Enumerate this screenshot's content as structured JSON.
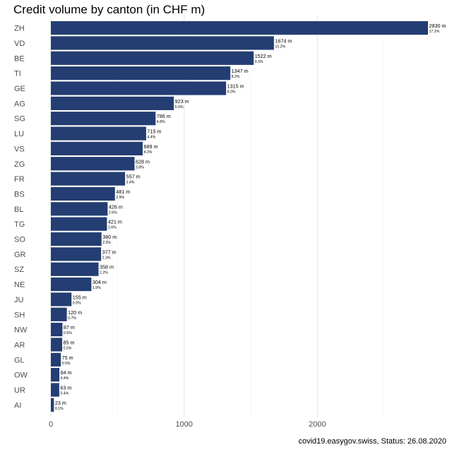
{
  "chart_data": {
    "type": "bar",
    "orientation": "horizontal",
    "title": "Credit volume by canton (in CHF m)",
    "xlabel": "",
    "ylabel": "",
    "categories": [
      "ZH",
      "VD",
      "BE",
      "TI",
      "GE",
      "AG",
      "SG",
      "LU",
      "VS",
      "ZG",
      "FR",
      "BS",
      "BL",
      "TG",
      "SO",
      "GR",
      "SZ",
      "NE",
      "JU",
      "SH",
      "NW",
      "AR",
      "GL",
      "OW",
      "UR",
      "AI"
    ],
    "values": [
      2830,
      1674,
      1522,
      1347,
      1315,
      923,
      786,
      715,
      689,
      628,
      557,
      481,
      426,
      421,
      380,
      377,
      358,
      304,
      155,
      120,
      87,
      85,
      75,
      64,
      63,
      23
    ],
    "value_labels": [
      "2830 m",
      "1674 m",
      "1522 m",
      "1347 m",
      "1315 m",
      "923 m",
      "786 m",
      "715 m",
      "689 m",
      "628 m",
      "557 m",
      "481 m",
      "426 m",
      "421 m",
      "380 m",
      "377 m",
      "358 m",
      "304 m",
      "155 m",
      "120 m",
      "87 m",
      "85 m",
      "75 m",
      "64 m",
      "63 m",
      "23 m"
    ],
    "share_labels": [
      "17.2%",
      "10.2%",
      "9.3%",
      "8.2%",
      "8.0%",
      "5.6%",
      "4.8%",
      "4.4%",
      "4.2%",
      "3.8%",
      "3.4%",
      "2.9%",
      "2.6%",
      "2.6%",
      "2.3%",
      "2.3%",
      "2.2%",
      "1.9%",
      "0.9%",
      "0.7%",
      "0.5%",
      "0.5%",
      "0.5%",
      "0.4%",
      "0.4%",
      "0.1%"
    ],
    "x_ticks": [
      0,
      1000,
      2000
    ],
    "x_tick_labels": [
      "0",
      "1000",
      "2000"
    ],
    "xlim": [
      0,
      2830
    ],
    "grid": true,
    "legend": "none",
    "bar_color": "#243e73",
    "grid_color": "#e6e6e6"
  },
  "caption": "covid19.easygov.swiss, Status: 26.08.2020"
}
